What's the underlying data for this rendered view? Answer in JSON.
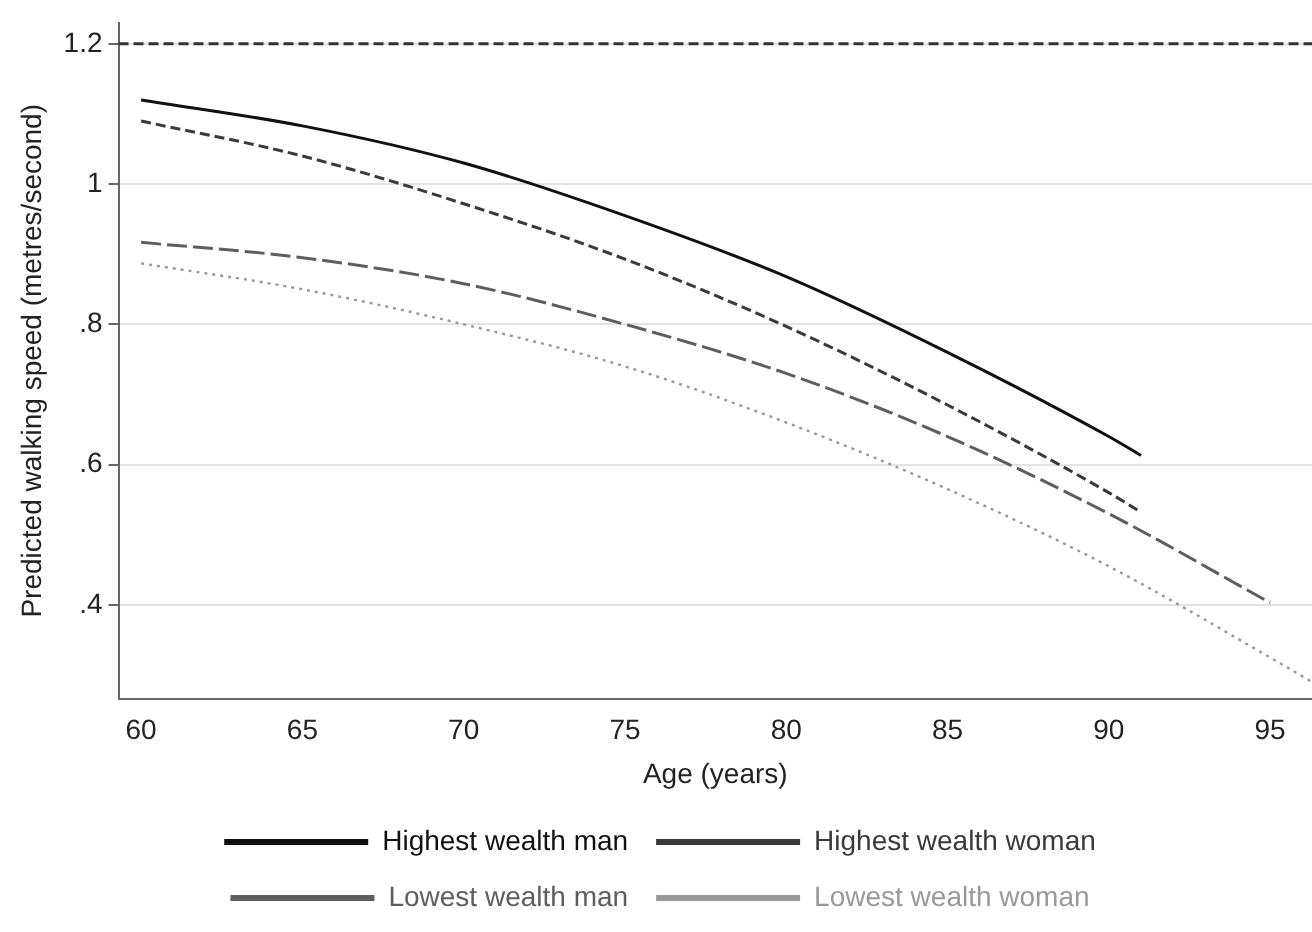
{
  "chart_data": {
    "type": "line",
    "xlabel": "Age (years)",
    "ylabel": "Predicted walking speed (metres/second)",
    "xlim": [
      59.3,
      96.3
    ],
    "xticks": [
      60,
      65,
      70,
      75,
      80,
      85,
      90,
      95
    ],
    "ylim": [
      0.266,
      1.23
    ],
    "yticks": [
      {
        "value": 0.4,
        "label": ".4"
      },
      {
        "value": 0.6,
        "label": ".6"
      },
      {
        "value": 0.8,
        "label": ".8"
      },
      1,
      1.2
    ],
    "grid": "y",
    "legend": "bottom",
    "marker": "none",
    "ref_lines": [
      {
        "axis": "y",
        "value": 1.2,
        "label": null,
        "color": "#333333",
        "line_style": "dashed"
      }
    ],
    "series": [
      {
        "name": "Highest wealth man",
        "color": "#111111",
        "line_style": "solid",
        "x": [
          60,
          65,
          70,
          75,
          80,
          85,
          90,
          91
        ],
        "values": [
          1.12,
          1.083,
          1.03,
          0.955,
          0.868,
          0.76,
          0.64,
          0.613
        ]
      },
      {
        "name": "Highest wealth woman",
        "color": "#3a3a3a",
        "line_style": "dashed",
        "x": [
          60,
          65,
          70,
          75,
          80,
          85,
          90,
          91
        ],
        "values": [
          1.09,
          1.04,
          0.972,
          0.893,
          0.797,
          0.685,
          0.56,
          0.532
        ]
      },
      {
        "name": "Lowest wealth man",
        "color": "#5e5e5e",
        "line_style": "longdash",
        "x": [
          60,
          65,
          70,
          75,
          80,
          85,
          90,
          95
        ],
        "values": [
          0.917,
          0.895,
          0.858,
          0.8,
          0.73,
          0.64,
          0.53,
          0.403
        ]
      },
      {
        "name": "Lowest wealth woman",
        "color": "#999999",
        "line_style": "dotted",
        "x": [
          60,
          65,
          70,
          75,
          80,
          85,
          90,
          95,
          96.3
        ],
        "values": [
          0.887,
          0.85,
          0.8,
          0.74,
          0.66,
          0.565,
          0.455,
          0.325,
          0.29
        ]
      }
    ]
  }
}
